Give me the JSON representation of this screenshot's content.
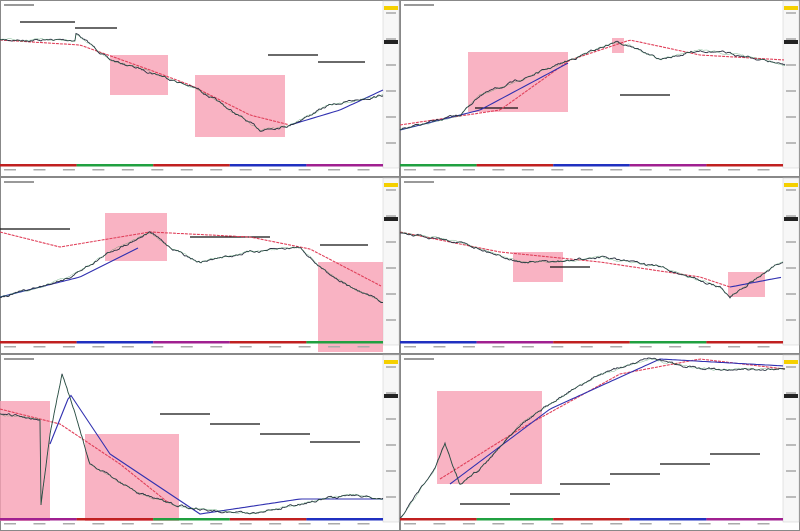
{
  "layout": {
    "columns": 2,
    "rows": 3
  }
}
